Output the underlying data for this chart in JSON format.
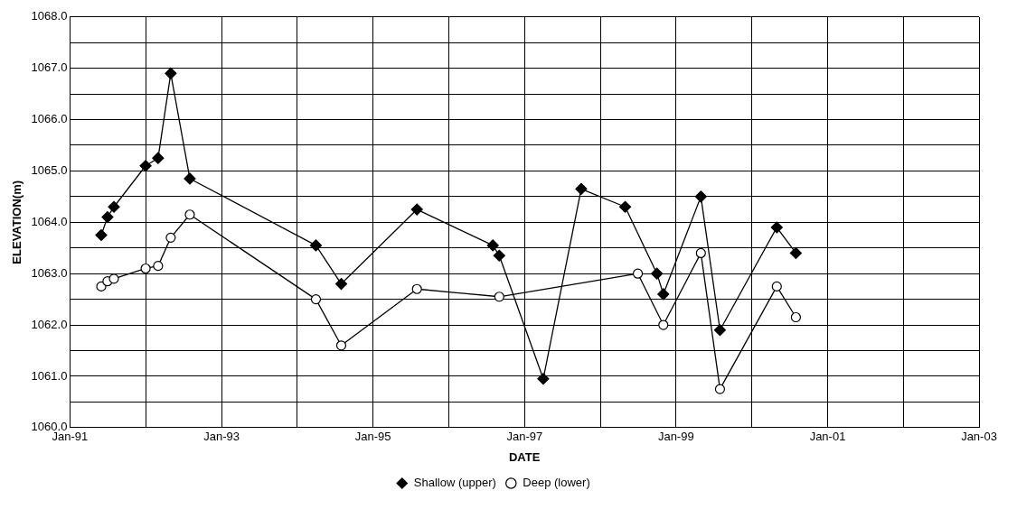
{
  "chart_data": {
    "type": "line",
    "xlabel": "DATE",
    "ylabel": "ELEVATION(m)",
    "grid": true,
    "legend": "bottom",
    "line_style": "solid",
    "xlim": [
      "1991-01",
      "2003-01"
    ],
    "xticks": [
      {
        "value": "1991-01",
        "label": "Jan-91"
      },
      {
        "value": "1992-01",
        "label": null
      },
      {
        "value": "1993-01",
        "label": "Jan-93"
      },
      {
        "value": "1994-01",
        "label": null
      },
      {
        "value": "1995-01",
        "label": "Jan-95"
      },
      {
        "value": "1996-01",
        "label": null
      },
      {
        "value": "1997-01",
        "label": "Jan-97"
      },
      {
        "value": "1998-01",
        "label": null
      },
      {
        "value": "1999-01",
        "label": "Jan-99"
      },
      {
        "value": "2000-01",
        "label": null
      },
      {
        "value": "2001-01",
        "label": "Jan-01"
      },
      {
        "value": "2002-01",
        "label": null
      },
      {
        "value": "2003-01",
        "label": "Jan-03"
      }
    ],
    "ylim": [
      1060,
      1068
    ],
    "yticks": [
      {
        "value": 1060,
        "label": "1060.0"
      },
      {
        "value": 1060.5,
        "label": null
      },
      {
        "value": 1061,
        "label": "1061.0"
      },
      {
        "value": 1061.5,
        "label": null
      },
      {
        "value": 1062,
        "label": "1062.0"
      },
      {
        "value": 1062.5,
        "label": null
      },
      {
        "value": 1063,
        "label": "1063.0"
      },
      {
        "value": 1063.5,
        "label": null
      },
      {
        "value": 1064,
        "label": "1064.0"
      },
      {
        "value": 1064.5,
        "label": null
      },
      {
        "value": 1065,
        "label": "1065.0"
      },
      {
        "value": 1065.5,
        "label": null
      },
      {
        "value": 1066,
        "label": "1066.0"
      },
      {
        "value": 1066.5,
        "label": null
      },
      {
        "value": 1067,
        "label": "1067.0"
      },
      {
        "value": 1067.5,
        "label": null
      },
      {
        "value": 1068,
        "label": "1068.0"
      }
    ],
    "series": [
      {
        "name": "Shallow (upper)",
        "color": "#000000",
        "marker": "diamond",
        "x": [
          "1991-06",
          "1991-07",
          "1991-08",
          "1992-01",
          "1992-03",
          "1992-05",
          "1992-08",
          "1994-04",
          "1994-08",
          "1995-08",
          "1996-08",
          "1996-09",
          "1997-04",
          "1997-10",
          "1998-05",
          "1998-10",
          "1998-11",
          "1999-05",
          "1999-08",
          "2000-05",
          "2000-08"
        ],
        "values": [
          1063.75,
          1064.1,
          1064.3,
          1065.1,
          1065.25,
          1066.9,
          1064.85,
          1063.55,
          1062.8,
          1064.25,
          1063.55,
          1063.35,
          1060.95,
          1064.65,
          1064.3,
          1063.0,
          1062.6,
          1064.5,
          1061.9,
          1063.9,
          1063.4
        ]
      },
      {
        "name": "Deep (lower)",
        "color": "#000000",
        "marker": "circle",
        "x": [
          "1991-06",
          "1991-07",
          "1991-08",
          "1992-01",
          "1992-03",
          "1992-05",
          "1992-08",
          "1994-04",
          "1994-08",
          "1995-08",
          "1996-09",
          "1998-07",
          "1998-11",
          "1999-05",
          "1999-08",
          "2000-05",
          "2000-08"
        ],
        "values": [
          1062.75,
          1062.85,
          1062.9,
          1063.1,
          1063.15,
          1063.7,
          1064.15,
          1062.5,
          1061.6,
          1062.7,
          1062.55,
          1063.0,
          1062.0,
          1063.4,
          1060.75,
          1062.75,
          1062.15
        ]
      }
    ]
  }
}
